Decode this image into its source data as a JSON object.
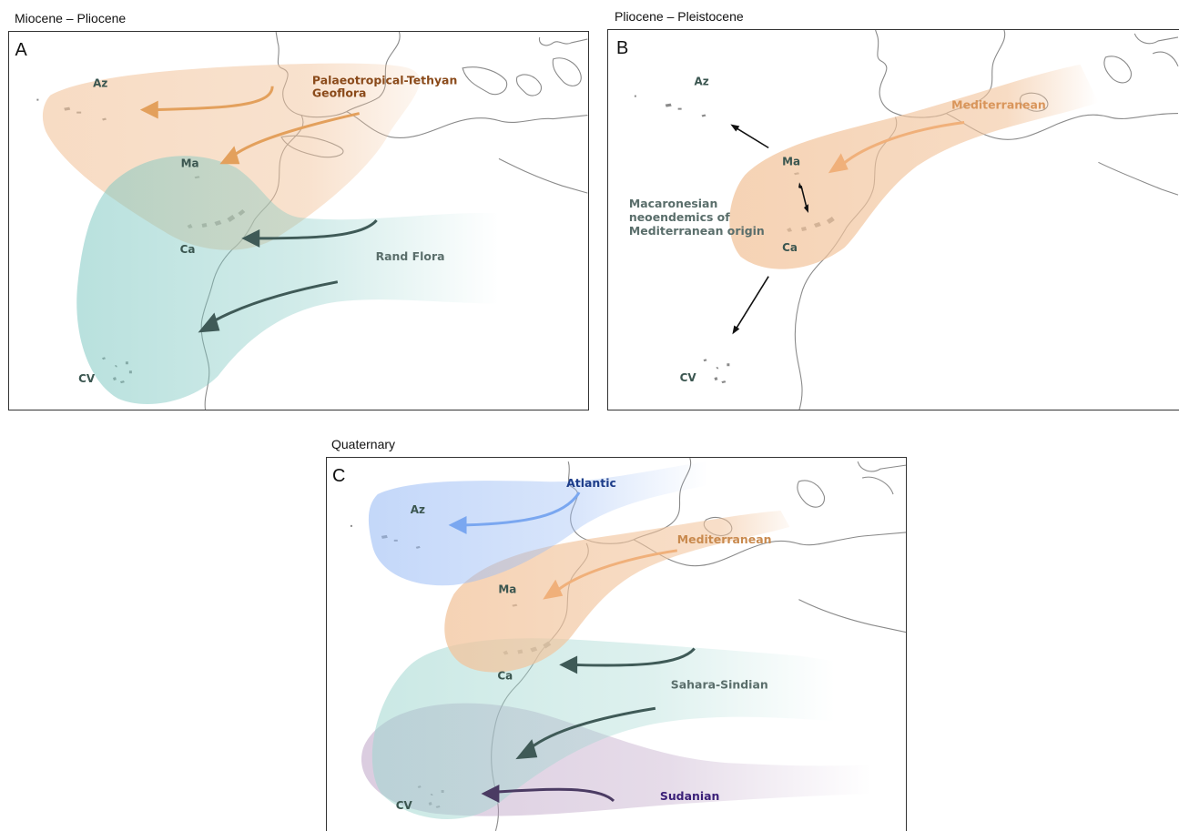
{
  "panels": [
    {
      "id": "A",
      "title": "Miocene – Pliocene",
      "letter": "A",
      "islands": {
        "az": "Az",
        "ma": "Ma",
        "ca": "Ca",
        "cv": "CV"
      },
      "floras": [
        "Palaeotropical-Tethyan",
        "Geoflora",
        "Rand Flora"
      ]
    },
    {
      "id": "B",
      "title": "Pliocene – Pleistocene",
      "letter": "B",
      "islands": {
        "az": "Az",
        "ma": "Ma",
        "ca": "Ca",
        "cv": "CV"
      },
      "floras": [
        "Mediterranean"
      ],
      "note_lines": [
        "Macaronesian",
        "neoendemics of",
        "Mediterranean origin"
      ]
    },
    {
      "id": "C",
      "title": "Quaternary",
      "letter": "C",
      "islands": {
        "az": "Az",
        "ma": "Ma",
        "ca": "Ca",
        "cv": "CV"
      },
      "floras": [
        "Atlantic",
        "Mediterranean",
        "Sahara-Sindian",
        "Sudanian"
      ]
    }
  ],
  "colors": {
    "palaeo_tethyan": "#e3a05c",
    "rand_flora": "#7fc8c2",
    "mediterranean": "#f0b07a",
    "atlantic": "#7aa7f0",
    "sahara_sindian": "#9fd6cf",
    "sudanian": "#b79ac0",
    "arrow_dark": "#3f5a57",
    "arrow_purple": "#4b3b63",
    "coast": "#8a8a8a"
  }
}
